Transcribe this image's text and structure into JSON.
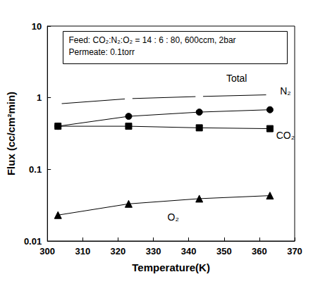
{
  "chart_data": {
    "type": "line",
    "x_label": "Temperature(K)",
    "y_label": "Flux (cc/cm²min)",
    "annotations": [
      "Feed: CO₂:N₂:O₂ = 14 : 6 : 80, 600ccm, 2bar",
      "Permeate: 0.1torr"
    ],
    "x": [
      303,
      323,
      343,
      363
    ],
    "series": [
      {
        "name": "Total",
        "color": "#000000",
        "marker": "open_circle",
        "values": [
          0.82,
          0.97,
          1.04,
          1.1
        ]
      },
      {
        "name": "N₂",
        "color": "#000000",
        "marker": "circle",
        "values": [
          0.4,
          0.55,
          0.63,
          0.68
        ]
      },
      {
        "name": "CO₂",
        "color": "#000000",
        "marker": "square",
        "values": [
          0.4,
          0.4,
          0.38,
          0.37
        ]
      },
      {
        "name": "O₂",
        "color": "#000000",
        "marker": "triangle",
        "values": [
          0.023,
          0.033,
          0.039,
          0.043
        ]
      }
    ],
    "xlim": [
      300,
      370
    ],
    "xticks": [
      300,
      310,
      320,
      330,
      340,
      350,
      360,
      370
    ],
    "ylim": [
      0.01,
      10
    ],
    "yticks": [
      0.01,
      0.1,
      1,
      10
    ],
    "log": "y",
    "grid": false
  }
}
